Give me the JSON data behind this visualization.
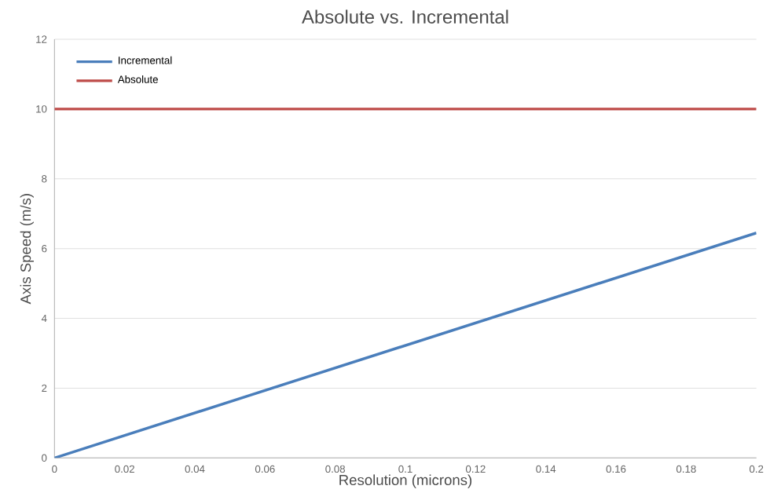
{
  "chart_data": {
    "type": "line",
    "title": "Absolute vs. Incremental",
    "xlabel": "Resolution (microns)",
    "ylabel": "Axis Speed (m/s)",
    "x": [
      0,
      0.2
    ],
    "series": [
      {
        "name": "Incremental",
        "color": "#4a7ebb",
        "values": [
          0,
          6.45
        ]
      },
      {
        "name": "Absolute",
        "color": "#be4b48",
        "values": [
          10,
          10
        ]
      }
    ],
    "xlim": [
      0,
      0.2
    ],
    "ylim": [
      0,
      12
    ],
    "xticks": [
      0,
      0.02,
      0.04,
      0.06,
      0.08,
      0.1,
      0.12,
      0.14,
      0.16,
      0.18,
      0.2
    ],
    "yticks": [
      0,
      2,
      4,
      6,
      8,
      10,
      12
    ],
    "grid": "y",
    "legend": "top left",
    "marker": "none",
    "line_style": "solid"
  }
}
